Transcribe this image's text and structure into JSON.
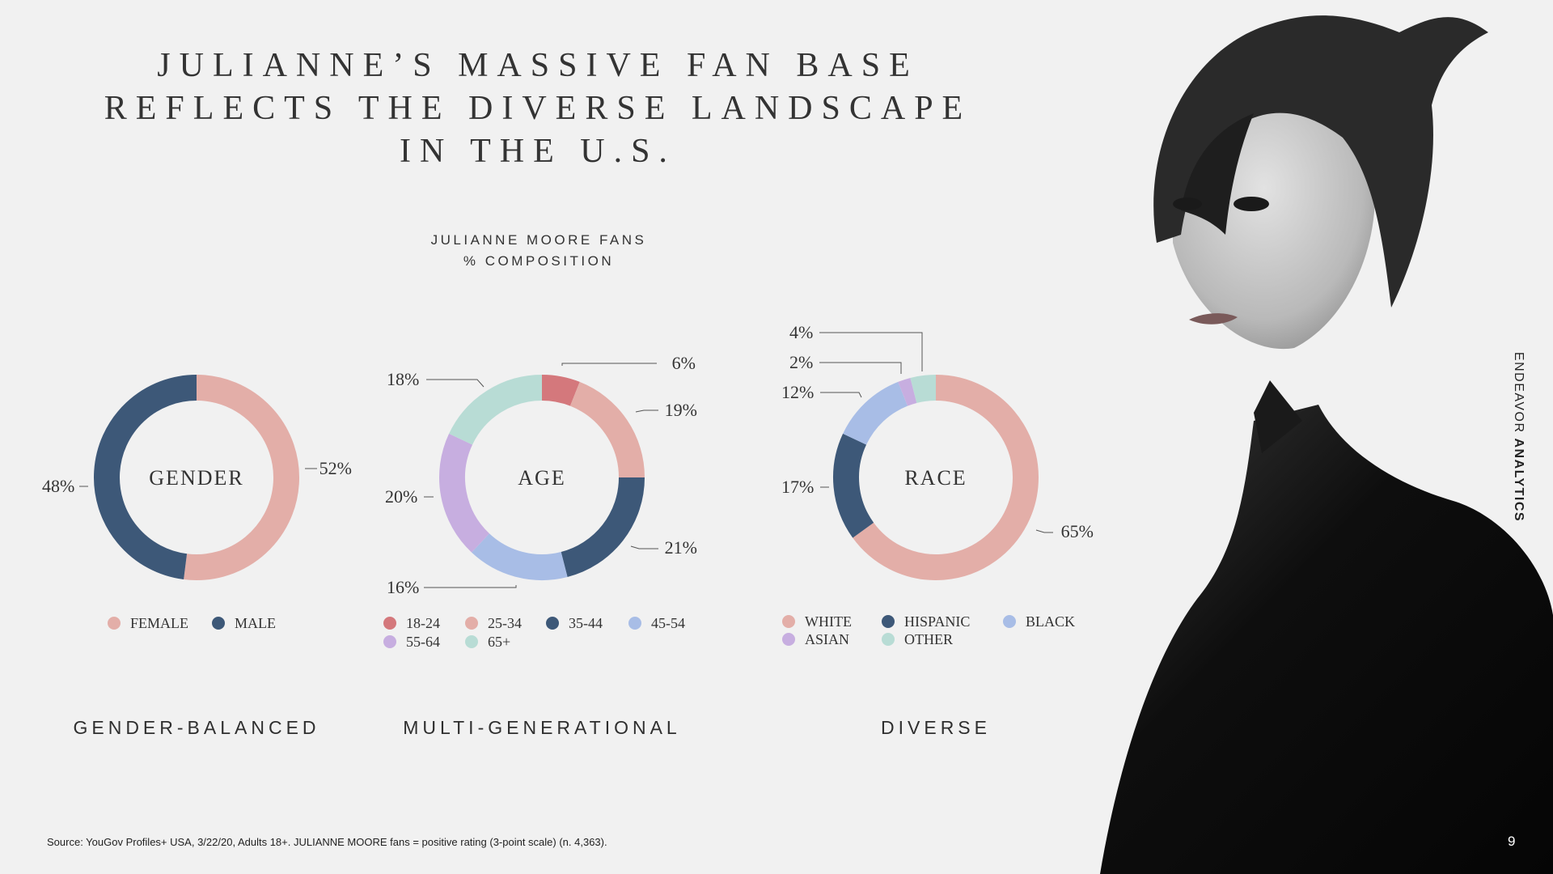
{
  "title": {
    "line1": "JULIANNE’S MASSIVE FAN BASE",
    "line2": "REFLECTS THE DIVERSE LANDSCAPE",
    "line3": "IN THE U.S."
  },
  "subtitle": {
    "line1": "JULIANNE MOORE FANS",
    "line2": "% COMPOSITION"
  },
  "chart_data": [
    {
      "type": "pie",
      "center_label": "GENDER",
      "categories": [
        "FEMALE",
        "MALE"
      ],
      "values": [
        52,
        48
      ],
      "labels": [
        "52%",
        "48%"
      ],
      "colors": [
        "#e3aea8",
        "#3d5878"
      ],
      "tag": "GENDER-BALANCED"
    },
    {
      "type": "pie",
      "center_label": "AGE",
      "categories": [
        "18-24",
        "25-34",
        "35-44",
        "45-54",
        "55-64",
        "65+"
      ],
      "values": [
        6,
        19,
        21,
        16,
        20,
        18
      ],
      "labels": [
        "6%",
        "19%",
        "21%",
        "16%",
        "20%",
        "18%"
      ],
      "colors": [
        "#d4787c",
        "#e3aea8",
        "#3d5878",
        "#a8bde6",
        "#c7aee0",
        "#b8dcd5"
      ],
      "tag": "MULTI-GENERATIONAL"
    },
    {
      "type": "pie",
      "center_label": "RACE",
      "categories": [
        "WHITE",
        "HISPANIC",
        "BLACK",
        "ASIAN",
        "OTHER"
      ],
      "values": [
        65,
        17,
        12,
        2,
        4
      ],
      "labels": [
        "65%",
        "17%",
        "12%",
        "2%",
        "4%"
      ],
      "colors": [
        "#e3aea8",
        "#3d5878",
        "#a8bde6",
        "#c7aee0",
        "#b8dcd5"
      ],
      "tag": "DIVERSE"
    }
  ],
  "footer": {
    "source": "Source: YouGov Profiles+ USA, 3/22/20, Adults 18+. JULIANNE MOORE fans = positive rating (3-point scale) (n. 4,363).",
    "page_number": "9"
  },
  "brand": {
    "part1": "ENDEAVOR",
    "part2": "ANALYTICS"
  }
}
